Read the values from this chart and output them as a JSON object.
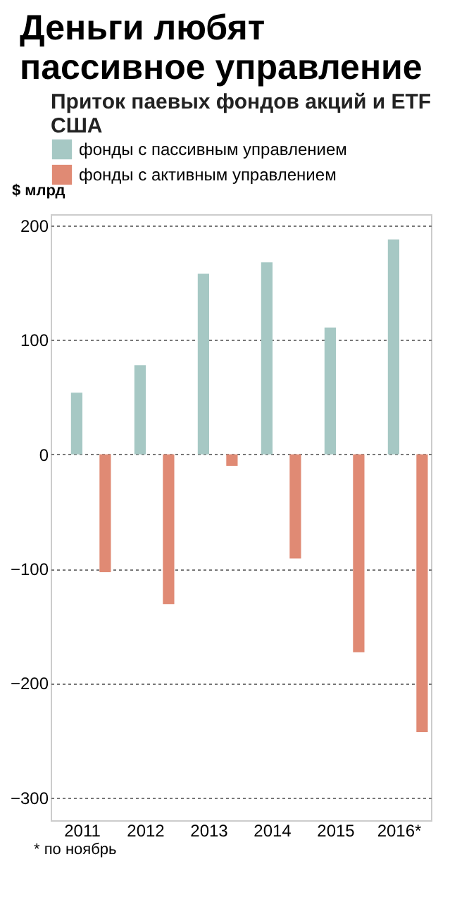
{
  "chart_data": {
    "type": "bar",
    "title": "Деньги любят пассивное управление",
    "subtitle": "Приток паевых фондов акций и ETF США",
    "ylabel": "$ млрд",
    "categories": [
      "2011",
      "2012",
      "2013",
      "2014",
      "2015",
      "2016*"
    ],
    "series": [
      {
        "name": "фонды с пассивным управлением",
        "color": "#a6c8c4",
        "values": [
          54,
          78,
          158,
          168,
          111,
          188
        ]
      },
      {
        "name": "фонды с активным управлением",
        "color": "#e08a74",
        "values": [
          -103,
          -131,
          -10,
          -91,
          -173,
          -243
        ]
      }
    ],
    "ylim": [
      -320,
      210
    ],
    "yticks": [
      -300,
      -200,
      -100,
      0,
      100,
      200
    ],
    "grid": "y",
    "legend": "top",
    "annotations": [
      "* по ноябрь"
    ]
  }
}
